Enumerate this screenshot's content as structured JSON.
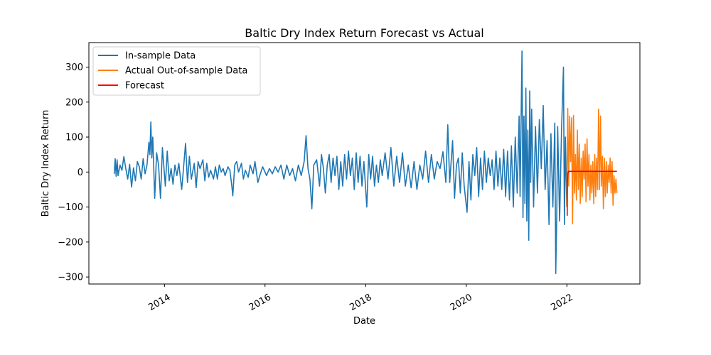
{
  "chart_data": {
    "type": "line",
    "title": "Baltic Dry Index Return Forecast vs Actual",
    "xlabel": "Date",
    "ylabel": "Baltic Dry Index Return",
    "xlim": [
      "2012-07-01",
      "2023-06-15"
    ],
    "ylim": [
      -320,
      370
    ],
    "x_ticks": [
      "2014",
      "2016",
      "2018",
      "2020",
      "2022"
    ],
    "y_ticks": [
      -300,
      -200,
      -100,
      0,
      100,
      200,
      300
    ],
    "grid": false,
    "legend_position": "top-left",
    "series": [
      {
        "name": "In-sample Data",
        "color": "#1f77b4",
        "points": [
          [
            "2013-01-01",
            -5
          ],
          [
            "2013-01-08",
            38
          ],
          [
            "2013-01-15",
            -12
          ],
          [
            "2013-01-22",
            35
          ],
          [
            "2013-01-29",
            -10
          ],
          [
            "2013-02-12",
            20
          ],
          [
            "2013-02-26",
            5
          ],
          [
            "2013-03-12",
            44
          ],
          [
            "2013-03-26",
            10
          ],
          [
            "2013-04-09",
            -20
          ],
          [
            "2013-04-23",
            22
          ],
          [
            "2013-05-07",
            -43
          ],
          [
            "2013-05-21",
            12
          ],
          [
            "2013-06-04",
            -25
          ],
          [
            "2013-06-18",
            30
          ],
          [
            "2013-07-02",
            15
          ],
          [
            "2013-07-16",
            -20
          ],
          [
            "2013-07-30",
            38
          ],
          [
            "2013-08-13",
            -5
          ],
          [
            "2013-08-27",
            20
          ],
          [
            "2013-09-10",
            85
          ],
          [
            "2013-09-17",
            50
          ],
          [
            "2013-09-24",
            143
          ],
          [
            "2013-10-01",
            40
          ],
          [
            "2013-10-08",
            100
          ],
          [
            "2013-10-22",
            -75
          ],
          [
            "2013-11-05",
            55
          ],
          [
            "2013-11-19",
            20
          ],
          [
            "2013-12-03",
            -75
          ],
          [
            "2013-12-17",
            70
          ],
          [
            "2014-01-07",
            -40
          ],
          [
            "2014-01-21",
            60
          ],
          [
            "2014-02-04",
            -25
          ],
          [
            "2014-02-18",
            10
          ],
          [
            "2014-03-04",
            -35
          ],
          [
            "2014-03-18",
            20
          ],
          [
            "2014-04-01",
            -10
          ],
          [
            "2014-04-15",
            25
          ],
          [
            "2014-05-06",
            -50
          ],
          [
            "2014-05-20",
            15
          ],
          [
            "2014-06-03",
            82
          ],
          [
            "2014-06-17",
            -30
          ],
          [
            "2014-07-01",
            45
          ],
          [
            "2014-07-15",
            -20
          ],
          [
            "2014-08-05",
            25
          ],
          [
            "2014-08-19",
            -45
          ],
          [
            "2014-09-02",
            30
          ],
          [
            "2014-09-16",
            10
          ],
          [
            "2014-10-07",
            35
          ],
          [
            "2014-10-21",
            -25
          ],
          [
            "2014-11-04",
            25
          ],
          [
            "2014-11-18",
            -15
          ],
          [
            "2014-12-02",
            5
          ],
          [
            "2014-12-23",
            -20
          ],
          [
            "2015-01-06",
            15
          ],
          [
            "2015-01-20",
            -20
          ],
          [
            "2015-02-03",
            20
          ],
          [
            "2015-02-17",
            0
          ],
          [
            "2015-03-03",
            10
          ],
          [
            "2015-03-17",
            -10
          ],
          [
            "2015-04-07",
            15
          ],
          [
            "2015-04-21",
            5
          ],
          [
            "2015-05-05",
            -40
          ],
          [
            "2015-05-12",
            -68
          ],
          [
            "2015-05-26",
            20
          ],
          [
            "2015-06-09",
            30
          ],
          [
            "2015-06-23",
            0
          ],
          [
            "2015-07-14",
            25
          ],
          [
            "2015-07-28",
            -20
          ],
          [
            "2015-08-11",
            5
          ],
          [
            "2015-09-01",
            -15
          ],
          [
            "2015-09-15",
            20
          ],
          [
            "2015-10-06",
            -5
          ],
          [
            "2015-10-20",
            30
          ],
          [
            "2015-11-10",
            -30
          ],
          [
            "2015-11-24",
            -10
          ],
          [
            "2015-12-15",
            15
          ],
          [
            "2016-01-12",
            -10
          ],
          [
            "2016-02-02",
            10
          ],
          [
            "2016-02-23",
            -5
          ],
          [
            "2016-03-15",
            15
          ],
          [
            "2016-04-05",
            0
          ],
          [
            "2016-04-26",
            20
          ],
          [
            "2016-05-17",
            -20
          ],
          [
            "2016-06-07",
            20
          ],
          [
            "2016-06-28",
            -10
          ],
          [
            "2016-07-19",
            10
          ],
          [
            "2016-08-09",
            -25
          ],
          [
            "2016-08-30",
            20
          ],
          [
            "2016-09-20",
            -10
          ],
          [
            "2016-10-11",
            30
          ],
          [
            "2016-10-25",
            104
          ],
          [
            "2016-11-08",
            10
          ],
          [
            "2016-11-22",
            -20
          ],
          [
            "2016-12-06",
            -105
          ],
          [
            "2016-12-20",
            20
          ],
          [
            "2017-01-10",
            35
          ],
          [
            "2017-01-31",
            -40
          ],
          [
            "2017-02-14",
            50
          ],
          [
            "2017-02-28",
            10
          ],
          [
            "2017-03-14",
            -60
          ],
          [
            "2017-03-28",
            20
          ],
          [
            "2017-04-11",
            50
          ],
          [
            "2017-04-25",
            -30
          ],
          [
            "2017-05-09",
            40
          ],
          [
            "2017-05-23",
            -10
          ],
          [
            "2017-06-06",
            45
          ],
          [
            "2017-06-20",
            -50
          ],
          [
            "2017-07-04",
            30
          ],
          [
            "2017-07-18",
            -40
          ],
          [
            "2017-08-01",
            50
          ],
          [
            "2017-08-15",
            -20
          ],
          [
            "2017-08-29",
            60
          ],
          [
            "2017-09-12",
            -10
          ],
          [
            "2017-09-26",
            40
          ],
          [
            "2017-10-10",
            -50
          ],
          [
            "2017-10-24",
            55
          ],
          [
            "2017-11-07",
            -30
          ],
          [
            "2017-11-21",
            45
          ],
          [
            "2017-12-05",
            -40
          ],
          [
            "2017-12-19",
            30
          ],
          [
            "2018-01-09",
            -100
          ],
          [
            "2018-01-23",
            50
          ],
          [
            "2018-02-06",
            -20
          ],
          [
            "2018-02-20",
            45
          ],
          [
            "2018-03-06",
            -40
          ],
          [
            "2018-03-20",
            20
          ],
          [
            "2018-04-03",
            -30
          ],
          [
            "2018-04-17",
            35
          ],
          [
            "2018-05-01",
            -10
          ],
          [
            "2018-05-22",
            55
          ],
          [
            "2018-06-12",
            -20
          ],
          [
            "2018-07-03",
            70
          ],
          [
            "2018-07-24",
            -40
          ],
          [
            "2018-08-14",
            45
          ],
          [
            "2018-09-04",
            -30
          ],
          [
            "2018-09-25",
            55
          ],
          [
            "2018-10-16",
            -40
          ],
          [
            "2018-11-06",
            20
          ],
          [
            "2018-11-27",
            -45
          ],
          [
            "2018-12-18",
            30
          ],
          [
            "2019-01-08",
            -50
          ],
          [
            "2019-01-29",
            20
          ],
          [
            "2019-02-19",
            -20
          ],
          [
            "2019-03-12",
            60
          ],
          [
            "2019-04-02",
            -30
          ],
          [
            "2019-04-23",
            50
          ],
          [
            "2019-05-14",
            -20
          ],
          [
            "2019-06-04",
            30
          ],
          [
            "2019-06-25",
            10
          ],
          [
            "2019-07-16",
            58
          ],
          [
            "2019-08-06",
            -30
          ],
          [
            "2019-08-20",
            135
          ],
          [
            "2019-08-27",
            50
          ],
          [
            "2019-09-03",
            -30
          ],
          [
            "2019-09-24",
            90
          ],
          [
            "2019-10-08",
            -75
          ],
          [
            "2019-10-22",
            20
          ],
          [
            "2019-11-05",
            40
          ],
          [
            "2019-11-19",
            -60
          ],
          [
            "2019-12-03",
            55
          ],
          [
            "2019-12-17",
            -40
          ],
          [
            "2020-01-07",
            -115
          ],
          [
            "2020-01-21",
            30
          ],
          [
            "2020-02-04",
            -80
          ],
          [
            "2020-02-18",
            50
          ],
          [
            "2020-03-03",
            -10
          ],
          [
            "2020-03-17",
            70
          ],
          [
            "2020-03-31",
            -70
          ],
          [
            "2020-04-14",
            40
          ],
          [
            "2020-04-28",
            -50
          ],
          [
            "2020-05-12",
            60
          ],
          [
            "2020-05-26",
            -30
          ],
          [
            "2020-06-09",
            40
          ],
          [
            "2020-06-23",
            -10
          ],
          [
            "2020-07-07",
            35
          ],
          [
            "2020-07-21",
            -50
          ],
          [
            "2020-08-04",
            60
          ],
          [
            "2020-08-18",
            -40
          ],
          [
            "2020-09-01",
            40
          ],
          [
            "2020-09-15",
            -50
          ],
          [
            "2020-09-29",
            65
          ],
          [
            "2020-10-13",
            -70
          ],
          [
            "2020-10-27",
            60
          ],
          [
            "2020-11-10",
            -80
          ],
          [
            "2020-11-24",
            75
          ],
          [
            "2020-12-08",
            -100
          ],
          [
            "2020-12-22",
            100
          ],
          [
            "2021-01-05",
            -60
          ],
          [
            "2021-01-19",
            160
          ],
          [
            "2021-01-26",
            -70
          ],
          [
            "2021-02-02",
            140
          ],
          [
            "2021-02-09",
            346
          ],
          [
            "2021-02-16",
            -130
          ],
          [
            "2021-02-23",
            160
          ],
          [
            "2021-03-02",
            -90
          ],
          [
            "2021-03-09",
            240
          ],
          [
            "2021-03-16",
            -140
          ],
          [
            "2021-03-23",
            120
          ],
          [
            "2021-03-30",
            -195
          ],
          [
            "2021-04-06",
            232
          ],
          [
            "2021-04-13",
            -30
          ],
          [
            "2021-04-20",
            180
          ],
          [
            "2021-05-04",
            -100
          ],
          [
            "2021-05-18",
            130
          ],
          [
            "2021-06-01",
            -60
          ],
          [
            "2021-06-15",
            150
          ],
          [
            "2021-06-29",
            10
          ],
          [
            "2021-07-13",
            190
          ],
          [
            "2021-07-27",
            -50
          ],
          [
            "2021-08-10",
            90
          ],
          [
            "2021-08-24",
            -150
          ],
          [
            "2021-09-07",
            110
          ],
          [
            "2021-09-21",
            -100
          ],
          [
            "2021-10-05",
            140
          ],
          [
            "2021-10-12",
            -290
          ],
          [
            "2021-10-19",
            -130
          ],
          [
            "2021-10-26",
            130
          ],
          [
            "2021-11-09",
            -140
          ],
          [
            "2021-11-23",
            120
          ],
          [
            "2021-12-07",
            300
          ],
          [
            "2021-12-14",
            -150
          ],
          [
            "2021-12-21",
            100
          ],
          [
            "2021-12-31",
            -100
          ]
        ]
      },
      {
        "name": "Actual Out-of-sample Data",
        "color": "#ff7f0e",
        "points": [
          [
            "2021-12-31",
            -100
          ],
          [
            "2022-01-07",
            182
          ],
          [
            "2022-01-14",
            -40
          ],
          [
            "2022-01-21",
            160
          ],
          [
            "2022-01-28",
            30
          ],
          [
            "2022-02-04",
            155
          ],
          [
            "2022-02-11",
            -148
          ],
          [
            "2022-02-18",
            162
          ],
          [
            "2022-02-25",
            -60
          ],
          [
            "2022-03-04",
            50
          ],
          [
            "2022-03-11",
            -80
          ],
          [
            "2022-03-18",
            120
          ],
          [
            "2022-03-25",
            -50
          ],
          [
            "2022-04-01",
            80
          ],
          [
            "2022-04-08",
            -90
          ],
          [
            "2022-04-15",
            40
          ],
          [
            "2022-04-22",
            -70
          ],
          [
            "2022-04-29",
            60
          ],
          [
            "2022-05-06",
            -20
          ],
          [
            "2022-05-13",
            80
          ],
          [
            "2022-05-20",
            -85
          ],
          [
            "2022-05-27",
            95
          ],
          [
            "2022-06-03",
            -40
          ],
          [
            "2022-06-10",
            50
          ],
          [
            "2022-06-17",
            -80
          ],
          [
            "2022-06-24",
            20
          ],
          [
            "2022-07-01",
            -60
          ],
          [
            "2022-07-08",
            30
          ],
          [
            "2022-07-15",
            -90
          ],
          [
            "2022-07-22",
            50
          ],
          [
            "2022-07-29",
            -70
          ],
          [
            "2022-08-05",
            40
          ],
          [
            "2022-08-12",
            -50
          ],
          [
            "2022-08-19",
            180
          ],
          [
            "2022-08-26",
            -50
          ],
          [
            "2022-09-02",
            160
          ],
          [
            "2022-09-09",
            -40
          ],
          [
            "2022-09-16",
            45
          ],
          [
            "2022-09-23",
            -105
          ],
          [
            "2022-09-30",
            40
          ],
          [
            "2022-10-07",
            -70
          ],
          [
            "2022-10-14",
            30
          ],
          [
            "2022-10-21",
            -60
          ],
          [
            "2022-10-28",
            20
          ],
          [
            "2022-11-04",
            -30
          ],
          [
            "2022-11-11",
            40
          ],
          [
            "2022-11-18",
            -60
          ],
          [
            "2022-11-25",
            30
          ],
          [
            "2022-12-02",
            -95
          ],
          [
            "2022-12-09",
            -10
          ],
          [
            "2022-12-16",
            -60
          ],
          [
            "2022-12-23",
            -20
          ],
          [
            "2022-12-30",
            -60
          ]
        ]
      },
      {
        "name": "Forecast",
        "color": "#ff0000",
        "points": [
          [
            "2022-01-03",
            -125
          ],
          [
            "2022-01-05",
            -30
          ],
          [
            "2022-01-08",
            -5
          ],
          [
            "2022-01-12",
            2
          ],
          [
            "2022-01-18",
            2
          ],
          [
            "2022-02-01",
            2
          ],
          [
            "2022-06-01",
            2
          ],
          [
            "2022-10-01",
            2
          ],
          [
            "2022-12-30",
            2
          ]
        ]
      }
    ]
  }
}
